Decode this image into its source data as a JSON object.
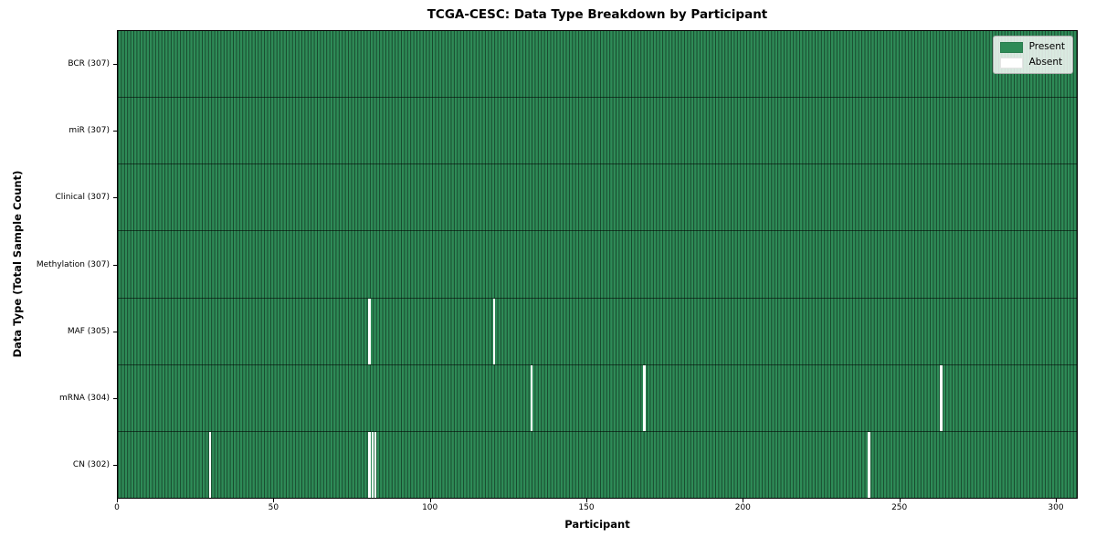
{
  "figure": {
    "title": "TCGA-CESC: Data Type Breakdown by Participant",
    "x_axis_label": "Participant",
    "y_axis_label": "Data Type (Total Sample Count)"
  },
  "legend": {
    "position": "upper right",
    "items": [
      {
        "label": "Present",
        "color": "#2e8b57"
      },
      {
        "label": "Absent",
        "color": "#ffffff"
      }
    ]
  },
  "chart_data": {
    "type": "heatmap",
    "title": "TCGA-CESC: Data Type Breakdown by Participant",
    "xlabel": "Participant",
    "ylabel": "Data Type (Total Sample Count)",
    "x_range": [
      0,
      307
    ],
    "x_ticks": [
      0,
      50,
      100,
      150,
      200,
      250,
      300
    ],
    "total_participants": 307,
    "colors": {
      "present": "#2e8b57",
      "absent": "#ffffff",
      "cell_edge": "rgba(0,0,0,0.5)"
    },
    "legend_position": "upper right",
    "grid": false,
    "rows": [
      {
        "label": "BCR (307)",
        "data_type": "BCR",
        "sample_count": 307,
        "absent_participants": []
      },
      {
        "label": "miR (307)",
        "data_type": "miR",
        "sample_count": 307,
        "absent_participants": []
      },
      {
        "label": "Clinical (307)",
        "data_type": "Clinical",
        "sample_count": 307,
        "absent_participants": []
      },
      {
        "label": "Methylation (307)",
        "data_type": "Methylation",
        "sample_count": 307,
        "absent_participants": []
      },
      {
        "label": "MAF (305)",
        "data_type": "MAF",
        "sample_count": 305,
        "absent_participants": [
          80,
          120
        ]
      },
      {
        "label": "mRNA (304)",
        "data_type": "mRNA",
        "sample_count": 304,
        "absent_participants": [
          132,
          168,
          263
        ]
      },
      {
        "label": "CN (302)",
        "data_type": "CN",
        "sample_count": 302,
        "absent_participants": [
          29,
          80,
          81,
          82,
          240
        ]
      }
    ]
  }
}
